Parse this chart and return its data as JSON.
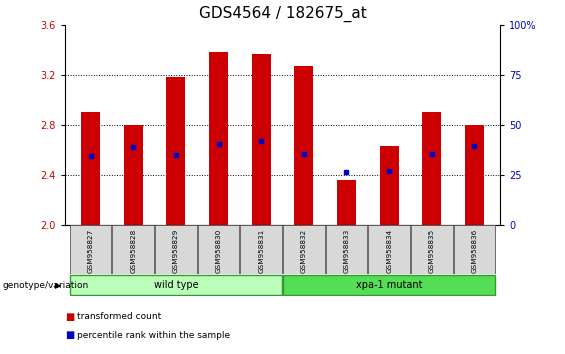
{
  "title": "GDS4564 / 182675_at",
  "samples": [
    "GSM958827",
    "GSM958828",
    "GSM958829",
    "GSM958830",
    "GSM958831",
    "GSM958832",
    "GSM958833",
    "GSM958834",
    "GSM958835",
    "GSM958836"
  ],
  "bar_tops": [
    2.9,
    2.8,
    3.18,
    3.38,
    3.37,
    3.27,
    2.36,
    2.63,
    2.9,
    2.8
  ],
  "blue_vals": [
    2.55,
    2.62,
    2.56,
    2.65,
    2.67,
    2.57,
    2.42,
    2.43,
    2.57,
    2.63
  ],
  "bar_bottom": 2.0,
  "ylim": [
    2.0,
    3.6
  ],
  "yticks_left": [
    2.0,
    2.4,
    2.8,
    3.2,
    3.6
  ],
  "yticks_right": [
    0,
    25,
    50,
    75,
    100
  ],
  "bar_color": "#cc0000",
  "blue_color": "#0000cc",
  "bar_width": 0.45,
  "groups": [
    {
      "label": "wild type",
      "start": 0,
      "end": 5,
      "color": "#bbffbb"
    },
    {
      "label": "xpa-1 mutant",
      "start": 5,
      "end": 10,
      "color": "#55dd55"
    }
  ],
  "genotype_label": "genotype/variation",
  "legend_items": [
    {
      "color": "#cc0000",
      "label": "transformed count"
    },
    {
      "color": "#0000cc",
      "label": "percentile rank within the sample"
    }
  ],
  "title_fontsize": 11,
  "tick_fontsize": 7,
  "label_fontsize": 7,
  "background_color": "#ffffff",
  "plot_bg": "#ffffff"
}
